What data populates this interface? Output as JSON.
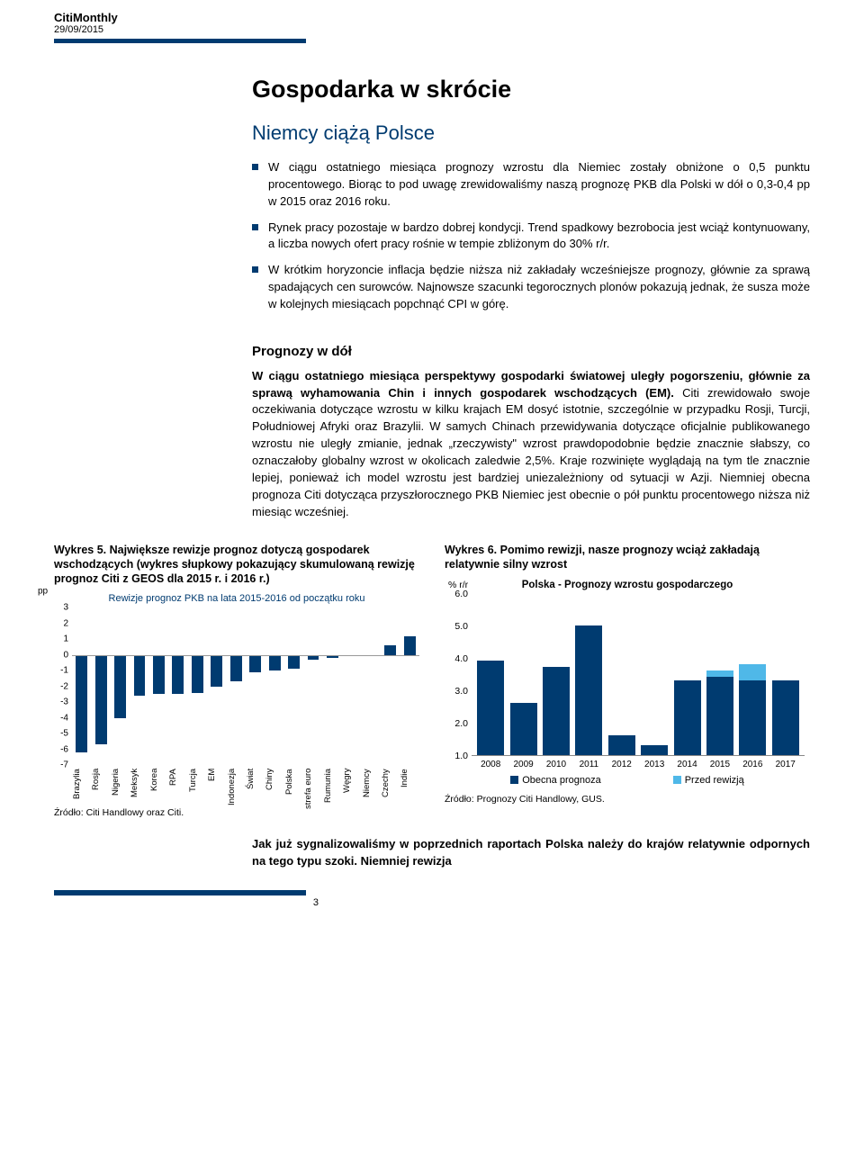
{
  "header": {
    "publication": "CitiMonthly",
    "date": "29/09/2015"
  },
  "main": {
    "title": "Gospodarka w skrócie",
    "subtitle": "Niemcy ciążą Polsce",
    "bullets": [
      "W ciągu ostatniego miesiąca prognozy wzrostu dla Niemiec zostały obniżone o 0,5 punktu procentowego. Biorąc to pod uwagę zrewidowaliśmy naszą prognozę PKB dla Polski w dół o 0,3-0,4 pp w 2015 oraz 2016 roku.",
      "Rynek pracy pozostaje w bardzo dobrej kondycji. Trend spadkowy bezrobocia jest wciąż kontynuowany, a liczba nowych ofert pracy rośnie w tempie zbliżonym do 30% r/r.",
      "W krótkim horyzoncie inflacja będzie niższa niż zakładały wcześniejsze prognozy, głównie za sprawą spadających cen surowców. Najnowsze szacunki tegorocznych plonów pokazują jednak, że susza może w kolejnych miesiącach popchnąć CPI w górę."
    ],
    "section_heading": "Prognozy w dół",
    "section_body": "W ciągu ostatniego miesiąca perspektywy gospodarki światowej uległy pogorszeniu, głównie za sprawą wyhamowania Chin i innych gospodarek wschodzących (EM). Citi zrewidowało swoje oczekiwania dotyczące wzrostu w kilku krajach EM dosyć istotnie, szczególnie w przypadku Rosji, Turcji, Południowej Afryki oraz Brazylii. W samych Chinach przewidywania dotyczące oficjalnie publikowanego wzrostu nie uległy zmianie, jednak „rzeczywisty\" wzrost prawdopodobnie będzie znacznie słabszy, co oznaczałoby globalny wzrost w okolicach zaledwie 2,5%. Kraje rozwinięte wyglądają na tym tle znacznie lepiej, ponieważ ich model wzrostu jest bardziej uniezależniony od sytuacji w Azji. Niemniej obecna prognoza Citi dotycząca przyszłorocznego PKB Niemiec jest obecnie o pół punktu procentowego niższa niż miesiąc wcześniej."
  },
  "chart1": {
    "caption": "Wykres 5. Największe rewizje prognoz dotyczą gospodarek wschodzących (wykres słupkowy pokazujący skumulowaną rewizję prognoz Citi z GEOS dla 2015 r. i 2016 r.)",
    "title": "Rewizje prognoz PKB na lata 2015-2016 od początku roku",
    "y_unit": "pp",
    "y_min": -7,
    "y_max": 3,
    "y_ticks": [
      3,
      2,
      1,
      0,
      -1,
      -2,
      -3,
      -4,
      -5,
      -6,
      -7
    ],
    "categories": [
      "Brazylia",
      "Rosja",
      "Nigeria",
      "Meksyk",
      "Korea",
      "RPA",
      "Turcja",
      "EM",
      "Indonezja",
      "Świat",
      "Chiny",
      "Polska",
      "strefa euro",
      "Rumunia",
      "Węgry",
      "Niemcy",
      "Czechy",
      "Indie"
    ],
    "values": [
      -6.2,
      -5.7,
      -4.0,
      -2.6,
      -2.5,
      -2.5,
      -2.4,
      -2.0,
      -1.7,
      -1.1,
      -1.0,
      -0.9,
      -0.3,
      -0.2,
      -0.1,
      -0.1,
      0.6,
      1.2
    ],
    "bar_color": "#003b70",
    "source": "Źródło: Citi Handlowy oraz Citi."
  },
  "chart2": {
    "caption": "Wykres 6. Pomimo rewizji, nasze prognozy wciąż zakładają relatywnie silny wzrost",
    "title": "Polska - Prognozy wzrostu gospodarczego",
    "y_unit": "% r/r",
    "y_min": 1.0,
    "y_max": 6.0,
    "y_ticks": [
      6.0,
      5.0,
      4.0,
      3.0,
      2.0,
      1.0
    ],
    "categories": [
      "2008",
      "2009",
      "2010",
      "2011",
      "2012",
      "2013",
      "2014",
      "2015",
      "2016",
      "2017"
    ],
    "values_current": [
      3.9,
      2.6,
      3.7,
      5.0,
      1.6,
      1.3,
      3.3,
      3.4,
      3.3,
      3.3
    ],
    "values_before": [
      3.9,
      2.6,
      3.7,
      5.0,
      1.6,
      1.3,
      3.3,
      3.6,
      3.8,
      3.3
    ],
    "color_current": "#003b70",
    "color_before": "#4fb8e8",
    "legend": {
      "current": "Obecna prognoza",
      "before": "Przed rewizją"
    },
    "source": "Źródło: Prognozy Citi Handlowy, GUS."
  },
  "footer": {
    "text": "Jak już sygnalizowaliśmy w poprzednich raportach Polska należy do krajów relatywnie odpornych na tego typu szoki. Niemniej rewizja",
    "page_number": "3"
  },
  "colors": {
    "brand": "#003b70",
    "light_blue": "#4fb8e8"
  }
}
